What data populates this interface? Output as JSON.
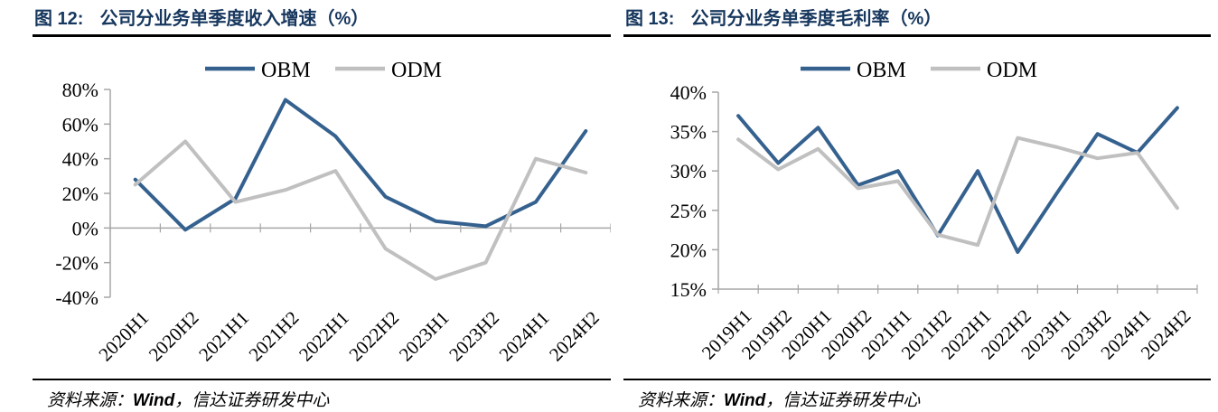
{
  "figures": [
    {
      "label": "图 12:",
      "title": "公司分业务单季度收入增速（%）",
      "source_label": "资料来源：",
      "source_wind": "Wind",
      "source_rest": "，信达证券研发中心"
    },
    {
      "label": "图 13:",
      "title": "公司分业务单季度毛利率（%）",
      "source_label": "资料来源：",
      "source_wind": "Wind",
      "source_rest": "，信达证券研发中心"
    }
  ],
  "chart_data": [
    {
      "type": "line",
      "title": "公司分业务单季度收入增速（%）",
      "categories": [
        "2020H1",
        "2020H2",
        "2021H1",
        "2021H2",
        "2022H1",
        "2022H2",
        "2023H1",
        "2023H2",
        "2024H1",
        "2024H2"
      ],
      "series": [
        {
          "name": "OBM",
          "color": "#35618f",
          "values": [
            28,
            -1,
            17,
            74,
            53,
            18,
            4,
            1,
            15,
            56
          ]
        },
        {
          "name": "ODM",
          "color": "#c0c0c0",
          "values": [
            25,
            50,
            15,
            22,
            33,
            -12,
            -29.5,
            -20,
            40,
            32
          ]
        }
      ],
      "ylim": [
        -40,
        80
      ],
      "ytick_step": 20,
      "ytick_format": "percent",
      "x_axis_at": 0,
      "grid": false,
      "legend_position": "top"
    },
    {
      "type": "line",
      "title": "公司分业务单季度毛利率（%）",
      "categories": [
        "2019H1",
        "2019H2",
        "2020H1",
        "2020H2",
        "2021H1",
        "2021H2",
        "2022H1",
        "2022H2",
        "2023H1",
        "2023H2",
        "2024H1",
        "2024H2"
      ],
      "series": [
        {
          "name": "OBM",
          "color": "#35618f",
          "values": [
            37,
            31,
            35.5,
            28.2,
            30,
            21.8,
            30,
            19.7,
            27.3,
            34.7,
            32.3,
            38
          ]
        },
        {
          "name": "ODM",
          "color": "#c0c0c0",
          "values": [
            34,
            30.2,
            32.8,
            27.8,
            28.7,
            21.9,
            20.6,
            34.2,
            33,
            31.6,
            32.3,
            25.3
          ]
        }
      ],
      "ylim": [
        15,
        40
      ],
      "ytick_step": 5,
      "ytick_format": "percent",
      "x_axis_at": 15,
      "grid": false,
      "legend_position": "top"
    }
  ],
  "colors": {
    "series_obm": "#35618f",
    "series_odm": "#c0c0c0",
    "title_navy": "#17375e",
    "axis_gray": "#a6a6a6",
    "rule_black": "#000000"
  }
}
